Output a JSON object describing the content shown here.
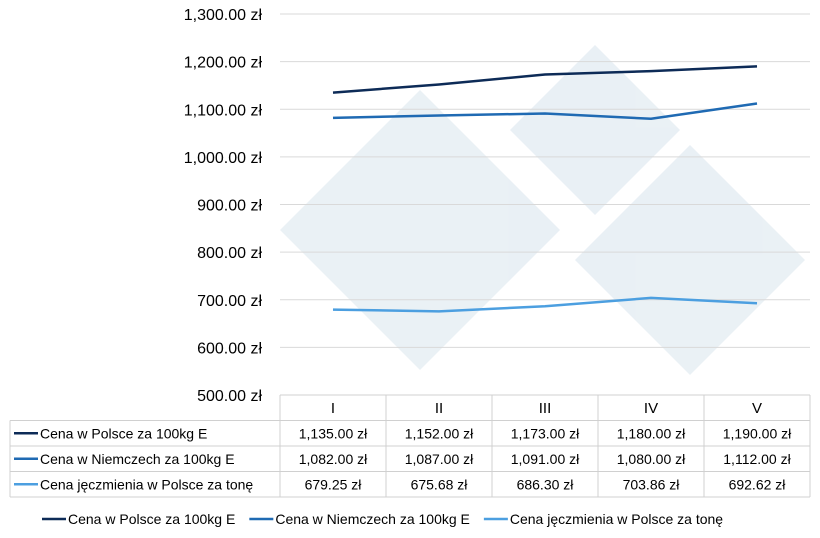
{
  "chart_data": {
    "type": "line",
    "title": "",
    "xlabel": "",
    "ylabel": "",
    "ylim": [
      500,
      1300
    ],
    "yticks": [
      500,
      600,
      700,
      800,
      900,
      1000,
      1100,
      1200,
      1300
    ],
    "ytick_labels": [
      "500.00 zł",
      "600.00 zł",
      "700.00 zł",
      "800.00 zł",
      "900.00 zł",
      "1,000.00 zł",
      "1,100.00 zł",
      "1,200.00 zł",
      "1,300.00 zł"
    ],
    "grid": true,
    "legend_placement": "bottom",
    "categories": [
      "I",
      "II",
      "III",
      "IV",
      "V"
    ],
    "series": [
      {
        "name": "Cena w Polsce za 100kg E",
        "color": "#0d2b57",
        "values": [
          1135.0,
          1152.0,
          1173.0,
          1180.0,
          1190.0
        ],
        "labels": [
          "1,135.00 zł",
          "1,152.00 zł",
          "1,173.00 zł",
          "1,180.00 zł",
          "1,190.00 zł"
        ]
      },
      {
        "name": "Cena w Niemczech za 100kg E",
        "color": "#1f6ab3",
        "values": [
          1082.0,
          1087.0,
          1091.0,
          1080.0,
          1112.0
        ],
        "labels": [
          "1,082.00 zł",
          "1,087.00 zł",
          "1,091.00 zł",
          "1,080.00 zł",
          "1,112.00 zł"
        ]
      },
      {
        "name": "Cena jęczmienia w Polsce za tonę",
        "color": "#4c9fe0",
        "values": [
          679.25,
          675.68,
          686.3,
          703.86,
          692.62
        ],
        "labels": [
          "679.25 zł",
          "675.68 zł",
          "686.30 zł",
          "703.86 zł",
          "692.62 zł"
        ]
      }
    ]
  }
}
